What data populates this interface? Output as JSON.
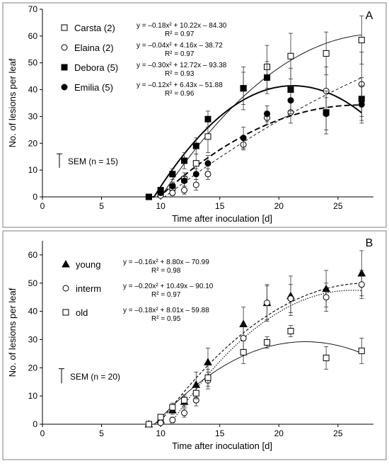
{
  "chart_data": [
    {
      "type": "scatter",
      "panel_label": "A",
      "xlabel": "Time after inoculation  [d]",
      "ylabel": "No. of lesions per leaf",
      "xlim": [
        0,
        28
      ],
      "ylim": [
        0,
        70
      ],
      "xticks": [
        0,
        5,
        10,
        15,
        20,
        25
      ],
      "yticks": [
        0,
        10,
        20,
        30,
        40,
        50,
        60,
        70
      ],
      "sem_label": "SEM (n = 15)",
      "sem_value": 5.2,
      "x": [
        9,
        10,
        11,
        12,
        13,
        14,
        17,
        19,
        21,
        24,
        27
      ],
      "series": [
        {
          "name": "Carsta (2)",
          "marker": "square-open",
          "line": "thin-solid",
          "values": [
            0,
            1.5,
            3.5,
            6.5,
            12.5,
            22.5,
            40.5,
            48.5,
            52.5,
            53.5,
            58.5
          ],
          "errors": [
            0,
            1,
            2,
            2.5,
            3.5,
            6,
            8,
            8,
            8.5,
            8,
            9
          ],
          "equation": "y = –0.18x² + 10.22x – 84.30",
          "r2": "R² = 0.97",
          "fit": [
            -0.18,
            10.22,
            -84.3
          ]
        },
        {
          "name": "Elaina (2)",
          "marker": "circle-open",
          "line": "thin-dashed",
          "values": [
            0,
            0.5,
            1.5,
            2.5,
            4.5,
            8.5,
            19.5,
            29.5,
            31.5,
            39.5,
            42
          ],
          "errors": [
            0,
            0.5,
            1,
            1.5,
            2,
            2,
            2,
            2.5,
            4,
            9,
            12
          ],
          "equation": "y = –0.04x² + 4.16x – 38.72",
          "r2": "R² = 0.97",
          "fit": [
            -0.04,
            4.16,
            -38.72
          ]
        },
        {
          "name": "Debora (5)",
          "marker": "square-filled",
          "line": "thick-solid",
          "values": [
            0,
            2.5,
            8.5,
            13.5,
            19,
            29,
            40.5,
            44.5,
            40,
            31.5,
            36.5
          ],
          "errors": [
            0,
            1,
            2,
            3,
            3,
            3,
            6,
            6,
            8,
            8,
            8
          ],
          "equation": "y = –0.30x² + 12.72x – 93.38",
          "r2": "R² = 0.93",
          "fit": [
            -0.3,
            12.72,
            -93.38
          ]
        },
        {
          "name": "Emilia (5)",
          "marker": "circle-filled",
          "line": "thick-dashed",
          "values": [
            0,
            1.5,
            4,
            6,
            8.5,
            12.5,
            22,
            31,
            36,
            31,
            34.5
          ],
          "errors": [
            0,
            1,
            1.5,
            2,
            2,
            3,
            4,
            3,
            5,
            6,
            7
          ],
          "equation": "y = –0.12x² + 6.43x – 51.88",
          "r2": "R² = 0.96",
          "fit": [
            -0.12,
            6.43,
            -51.88
          ]
        }
      ]
    },
    {
      "type": "scatter",
      "panel_label": "B",
      "xlabel": "Time after inoculation  [d]",
      "ylabel": "No. of lesions per leaf",
      "xlim": [
        0,
        28
      ],
      "ylim": [
        0,
        65
      ],
      "xticks": [
        0,
        5,
        10,
        15,
        20,
        25
      ],
      "yticks": [
        0,
        10,
        20,
        30,
        40,
        50,
        60
      ],
      "sem_label": "SEM (n = 20)",
      "sem_value": 5.2,
      "x": [
        9,
        10,
        11,
        12,
        13,
        14,
        17,
        19,
        21,
        24,
        27
      ],
      "series": [
        {
          "name": "young",
          "marker": "triangle-filled",
          "line": "dashed",
          "values": [
            0,
            1.5,
            5,
            8,
            14,
            22,
            35.5,
            43,
            45.5,
            48,
            53.5
          ],
          "errors": [
            0,
            1,
            1.5,
            2,
            4.5,
            5,
            6,
            6.5,
            7,
            6.5,
            8
          ],
          "equation": "y = –0.16x² + 8.80x – 70.99",
          "r2": "R² = 0.98",
          "fit": [
            -0.16,
            8.8,
            -70.99
          ]
        },
        {
          "name": "interm",
          "marker": "circle-open",
          "line": "dotted",
          "values": [
            0,
            0.5,
            1.5,
            4,
            8.5,
            15.5,
            30.5,
            43,
            44.5,
            45,
            49.5
          ],
          "errors": [
            0,
            0.5,
            1,
            1.5,
            2,
            3,
            5,
            6,
            5,
            5,
            5
          ],
          "equation": "y = –0.20x² + 10.49x – 90.10",
          "r2": "R² = 0.97",
          "fit": [
            -0.2,
            10.49,
            -90.1
          ]
        },
        {
          "name": "old",
          "marker": "square-open",
          "line": "thin-solid",
          "values": [
            0,
            2.5,
            6,
            8.5,
            11,
            16.5,
            25.5,
            29,
            33,
            23.5,
            26
          ],
          "errors": [
            0,
            1,
            1.5,
            2,
            2,
            3,
            4,
            2,
            2,
            4,
            4.5
          ],
          "equation": "y = –0.18x² + 8.01x – 59.88",
          "r2": "R² = 0.95",
          "fit": [
            -0.18,
            8.01,
            -59.88
          ]
        }
      ]
    }
  ]
}
